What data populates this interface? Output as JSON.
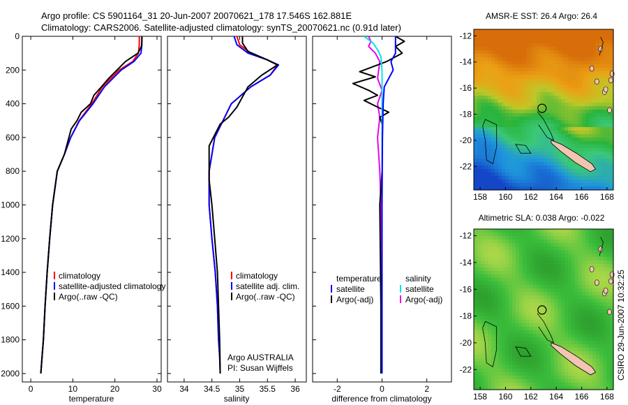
{
  "figure": {
    "title_line1": "Argo profile: CS 5901164_31 20-Jun-2007 20070621_178 17.546S 162.881E",
    "title_line2": "Climatology: CARS2006. Satellite-adjusted climatology: synTS_20070621.nc (0.91d later)",
    "footer_vertical": "CSIRO 29-Jun-2007 10:32:25",
    "note_line1": "Argo AUSTRALIA",
    "note_line2": "PI: Susan Wijffels"
  },
  "colors": {
    "climatology": "#ff0000",
    "satellite": "#0000ff",
    "argo": "#000000",
    "satellite_diff_sal": "#00e5e5",
    "argo_diff_sal": "#ee00ee"
  },
  "chart_data": [
    {
      "type": "line",
      "id": "temperature",
      "xlabel": "temperature",
      "xlim": [
        -2,
        31
      ],
      "ylim": [
        0,
        2050
      ],
      "y_reversed": true,
      "xticks": [
        0,
        10,
        20,
        30
      ],
      "yticks": [
        0,
        200,
        400,
        600,
        800,
        1000,
        1200,
        1400,
        1600,
        1800,
        2000
      ],
      "legend": [
        "climatology",
        "satellite-adjusted climatology",
        "Argo(..raw -QC)"
      ],
      "series": [
        {
          "name": "climatology",
          "color_key": "climatology",
          "x": [
            25.8,
            25.8,
            25.6,
            24.2,
            21.0,
            17.0,
            14.5,
            11.5,
            9.5,
            8.0,
            6.3,
            5.2,
            4.5,
            3.9,
            3.4,
            3.0,
            2.7,
            2.4
          ],
          "y": [
            0,
            50,
            100,
            150,
            200,
            300,
            400,
            500,
            600,
            700,
            800,
            1000,
            1200,
            1400,
            1600,
            1800,
            1900,
            2000
          ]
        },
        {
          "name": "satellite-adjusted climatology",
          "color_key": "satellite",
          "x": [
            26.4,
            26.4,
            26.2,
            24.5,
            21.5,
            17.5,
            14.8,
            11.6,
            9.5,
            8.0,
            6.3,
            5.2,
            4.5,
            3.9,
            3.4,
            3.0,
            2.7,
            2.4
          ],
          "y": [
            0,
            50,
            100,
            150,
            200,
            300,
            400,
            500,
            600,
            700,
            800,
            1000,
            1200,
            1400,
            1600,
            1800,
            1900,
            2000
          ]
        },
        {
          "name": "Argo(..raw -QC)",
          "color_key": "argo",
          "x": [
            26.4,
            26.4,
            26.3,
            25.5,
            22.5,
            18.5,
            16.8,
            15.0,
            14.2,
            12.0,
            11.0,
            9.6,
            8.0,
            6.3,
            5.2,
            4.5,
            3.9,
            3.4,
            3.0,
            2.7,
            2.4
          ],
          "y": [
            0,
            30,
            60,
            100,
            150,
            250,
            300,
            350,
            400,
            450,
            500,
            550,
            700,
            800,
            1000,
            1200,
            1400,
            1600,
            1800,
            1900,
            2000
          ]
        }
      ]
    },
    {
      "type": "line",
      "id": "salinity",
      "xlabel": "salinity",
      "xlim": [
        33.7,
        36.2
      ],
      "ylim": [
        0,
        2050
      ],
      "y_reversed": true,
      "xticks": [
        34,
        34.5,
        35,
        35.5,
        36
      ],
      "xtick_labels": [
        "34",
        "34.5",
        "35",
        "35.5",
        "36"
      ],
      "legend": [
        "climatology",
        "satellite adj. clim.",
        "Argo(..raw -QC)"
      ],
      "series": [
        {
          "name": "climatology",
          "color_key": "climatology",
          "x": [
            34.95,
            35.0,
            35.2,
            35.5,
            35.68,
            35.55,
            35.2,
            34.85,
            34.55,
            34.45,
            34.45,
            34.5,
            34.56,
            34.6,
            34.62,
            34.64,
            34.65
          ],
          "y": [
            0,
            50,
            100,
            140,
            170,
            230,
            300,
            400,
            600,
            800,
            1000,
            1200,
            1400,
            1600,
            1800,
            1900,
            2000
          ]
        },
        {
          "name": "satellite adj. clim.",
          "color_key": "satellite",
          "x": [
            34.9,
            34.95,
            35.15,
            35.5,
            35.7,
            35.55,
            35.2,
            34.85,
            34.55,
            34.45,
            34.45,
            34.5,
            34.56,
            34.6,
            34.62,
            34.64,
            34.65
          ],
          "y": [
            0,
            50,
            100,
            140,
            170,
            230,
            300,
            400,
            600,
            800,
            1000,
            1200,
            1400,
            1600,
            1800,
            1900,
            2000
          ]
        },
        {
          "name": "Argo(..raw -QC)",
          "color_key": "argo",
          "x": [
            35.05,
            35.05,
            35.15,
            35.5,
            35.68,
            35.4,
            35.15,
            35.1,
            34.95,
            34.8,
            34.65,
            34.45,
            34.45,
            34.45,
            34.5,
            34.55,
            34.6,
            34.62,
            34.64,
            34.65
          ],
          "y": [
            0,
            40,
            90,
            140,
            170,
            230,
            300,
            330,
            420,
            480,
            520,
            650,
            750,
            850,
            1000,
            1200,
            1400,
            1600,
            1800,
            2000
          ]
        }
      ]
    },
    {
      "type": "line",
      "id": "difference",
      "xlabel": "difference from climatology",
      "xlim": [
        -3.1,
        3.1
      ],
      "ylim": [
        0,
        2050
      ],
      "y_reversed": true,
      "xticks": [
        -2,
        0,
        2
      ],
      "legend": [
        "temperature",
        "satellite",
        "Argo(-adj)",
        "salinity",
        "satellite",
        "Argo(-adj)"
      ],
      "series": [
        {
          "name": "satellite",
          "group": "temperature",
          "color_key": "satellite",
          "x": [
            0.6,
            0.6,
            0.6,
            0.4,
            0.5,
            0.3,
            0.1,
            0.05,
            0.02,
            0.0,
            0.0
          ],
          "y": [
            0,
            50,
            100,
            150,
            200,
            250,
            300,
            400,
            600,
            1000,
            2000
          ]
        },
        {
          "name": "Argo(-adj)",
          "group": "temperature",
          "color_key": "argo",
          "x": [
            0.6,
            1.0,
            0.6,
            0.9,
            0.2,
            -1.0,
            -0.3,
            -1.3,
            -0.6,
            -0.2,
            -0.8,
            -0.2,
            0.3,
            -0.1,
            0.0,
            0.0,
            -0.1,
            -0.05,
            -0.05
          ],
          "y": [
            0,
            30,
            60,
            100,
            150,
            210,
            240,
            280,
            320,
            350,
            380,
            420,
            450,
            480,
            520,
            800,
            1000,
            1600,
            2000
          ]
        },
        {
          "name": "satellite",
          "group": "salinity",
          "color_key": "satellite_diff_sal",
          "x": [
            -0.8,
            -0.6,
            -0.4,
            -0.2,
            -0.05,
            0.0,
            0.0,
            0.0
          ],
          "y": [
            0,
            20,
            40,
            80,
            120,
            200,
            1000,
            2000
          ]
        },
        {
          "name": "Argo(-adj)",
          "group": "salinity",
          "color_key": "argo_diff_sal",
          "x": [
            -0.6,
            -0.5,
            -0.6,
            -0.3,
            -0.1,
            -0.2,
            0.0,
            -0.2,
            -0.1,
            -0.2,
            -0.1,
            -0.05,
            -0.05,
            0.0,
            0.0
          ],
          "y": [
            0,
            30,
            60,
            100,
            150,
            250,
            320,
            400,
            480,
            600,
            800,
            1000,
            1200,
            1600,
            2000
          ]
        }
      ]
    },
    {
      "type": "heatmap",
      "id": "sst_map",
      "title": "AMSR-E SST: 26.4 Argo: 26.4",
      "xlim": [
        157.5,
        168.5
      ],
      "ylim": [
        -23.8,
        -11.5
      ],
      "xticks": [
        158,
        160,
        162,
        164,
        166,
        168
      ],
      "yticks": [
        -12,
        -14,
        -16,
        -18,
        -20,
        -22
      ],
      "profile_location": {
        "lon": 162.881,
        "lat": -17.546
      }
    },
    {
      "type": "heatmap",
      "id": "sla_map",
      "title": "Altimetric SLA: 0.038 Argo: -0.022",
      "xlim": [
        157.5,
        168.5
      ],
      "ylim": [
        -23.5,
        -11.5
      ],
      "xticks": [
        158,
        160,
        162,
        164,
        166,
        168
      ],
      "yticks": [
        -12,
        -14,
        -16,
        -18,
        -20,
        -22
      ],
      "profile_location": {
        "lon": 162.881,
        "lat": -17.546
      }
    }
  ]
}
